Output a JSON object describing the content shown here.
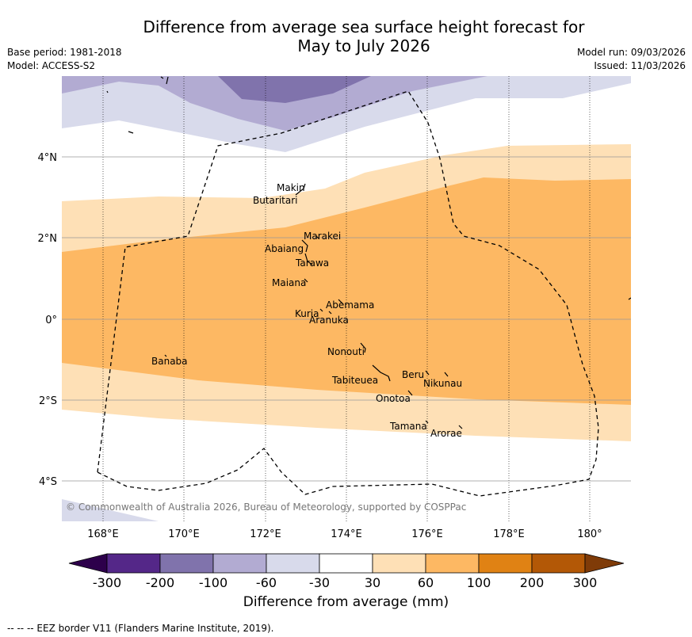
{
  "title_line1": "Difference from average sea surface height forecast for",
  "title_line2": "May to July 2026",
  "base_period": "Base period: 1981-2018",
  "model": "Model: ACCESS-S2",
  "model_run": "Model run: 09/03/2026",
  "issued": "Issued: 11/03/2026",
  "lon_ticks": [
    "168°E",
    "170°E",
    "172°E",
    "174°E",
    "176°E",
    "178°E",
    "180°"
  ],
  "lat_ticks": [
    "4°N",
    "2°N",
    "0°",
    "2°S",
    "4°S"
  ],
  "islands": [
    "Makin",
    "Butaritari",
    "Marakei",
    "Abaiang",
    "Tarawa",
    "Maiana",
    "Abemama",
    "Kuria",
    "Aranuka",
    "Nonouti",
    "Banaba",
    "Beru",
    "Nikunau",
    "Tabiteuea",
    "Onotoa",
    "Tamana",
    "Arorae"
  ],
  "copyright": "© Commonwealth of Australia 2026, Bureau of Meteorology, supported by COSPPac",
  "colorbar": {
    "labels": [
      "-300",
      "-200",
      "-100",
      "-60",
      "-30",
      "30",
      "60",
      "100",
      "200",
      "300"
    ],
    "colors": [
      "#2d004b",
      "#542788",
      "#8073ac",
      "#b2abd2",
      "#d8daeb",
      "#ffffff",
      "#fee0b6",
      "#fdb863",
      "#e08214",
      "#b35806",
      "#7f3b08"
    ],
    "title": "Difference from average (mm)"
  },
  "footnote": "--  --  -- EEZ border V11 (Flanders Marine Institute, 2019)."
}
